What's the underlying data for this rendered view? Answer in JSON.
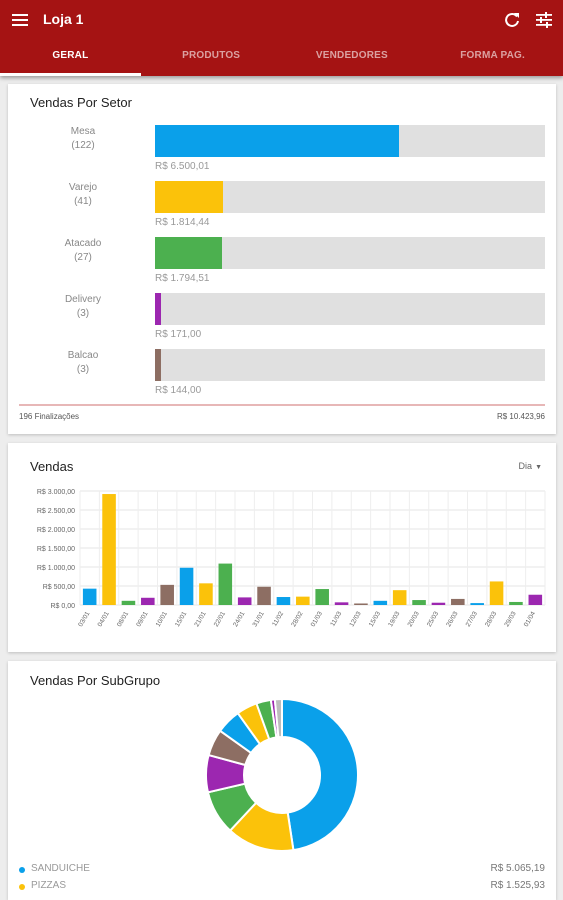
{
  "appbar": {
    "title": "Loja 1",
    "menu_icon": "menu-icon",
    "refresh_icon": "refresh-icon",
    "filter_icon": "tune-icon",
    "color": "#a51313"
  },
  "tabs": [
    {
      "label": "GERAL",
      "active": true
    },
    {
      "label": "PRODUTOS",
      "active": false
    },
    {
      "label": "VENDEDORES",
      "active": false
    },
    {
      "label": "FORMA PAG.",
      "active": false
    }
  ],
  "setor": {
    "title": "Vendas Por Setor",
    "items": [
      {
        "name": "Mesa",
        "count": "(122)",
        "value": "R$ 6.500,01",
        "amount": 6500.01,
        "color": "#0aa0ea"
      },
      {
        "name": "Varejo",
        "count": "(41)",
        "value": "R$ 1.814,44",
        "amount": 1814.44,
        "color": "#fbc20a"
      },
      {
        "name": "Atacado",
        "count": "(27)",
        "value": "R$ 1.794,51",
        "amount": 1794.51,
        "color": "#4cb04f"
      },
      {
        "name": "Delivery",
        "count": "(3)",
        "value": "R$ 171,00",
        "amount": 171.0,
        "color": "#9c27b0"
      },
      {
        "name": "Balcao",
        "count": "(3)",
        "value": "R$ 144,00",
        "amount": 144.0,
        "color": "#8d6e63"
      }
    ],
    "footer_left": "196 Finalizações",
    "footer_right": "R$ 10.423,96"
  },
  "vendas": {
    "title": "Vendas",
    "period": "Dia",
    "chart_data": {
      "type": "bar",
      "ylim": [
        0,
        3000
      ],
      "yticks": [
        "R$ 0,00",
        "R$ 500,00",
        "R$ 1.000,00",
        "R$ 1.500,00",
        "R$ 2.000,00",
        "R$ 2.500,00",
        "R$ 3.000,00"
      ],
      "categories": [
        "03/01",
        "04/01",
        "08/01",
        "09/01",
        "10/01",
        "15/01",
        "21/01",
        "22/01",
        "24/01",
        "31/01",
        "11/02",
        "28/02",
        "01/03",
        "11/03",
        "12/03",
        "15/03",
        "19/03",
        "20/03",
        "25/03",
        "26/03",
        "27/03",
        "28/03",
        "29/03",
        "01/04"
      ],
      "values": [
        430,
        2920,
        110,
        190,
        530,
        980,
        570,
        1090,
        200,
        480,
        210,
        220,
        420,
        70,
        40,
        110,
        390,
        130,
        60,
        160,
        50,
        620,
        80,
        270
      ],
      "colors": [
        "#0aa0ea",
        "#fbc20a",
        "#4cb04f",
        "#9c27b0",
        "#8d6e63",
        "#0aa0ea",
        "#fbc20a",
        "#4cb04f",
        "#9c27b0",
        "#8d6e63",
        "#0aa0ea",
        "#fbc20a",
        "#4cb04f",
        "#9c27b0",
        "#8d6e63",
        "#0aa0ea",
        "#fbc20a",
        "#4cb04f",
        "#9c27b0",
        "#8d6e63",
        "#0aa0ea",
        "#fbc20a",
        "#4cb04f",
        "#9c27b0"
      ],
      "grid": true
    }
  },
  "subgrupo": {
    "title": "Vendas Por SubGrupo",
    "chart_data": {
      "type": "pie",
      "series": [
        {
          "name": "SANDUICHE",
          "value": 5065.19,
          "color": "#0aa0ea"
        },
        {
          "name": "PIZZAS",
          "value": 1525.93,
          "color": "#fbc20a"
        },
        {
          "name": "",
          "value": 1000,
          "color": "#4cb04f"
        },
        {
          "name": "",
          "value": 840,
          "color": "#9c27b0"
        },
        {
          "name": "",
          "value": 600,
          "color": "#8d6e63"
        },
        {
          "name": "",
          "value": 560,
          "color": "#0aa0ea"
        },
        {
          "name": "",
          "value": 470,
          "color": "#fbc20a"
        },
        {
          "name": "",
          "value": 330,
          "color": "#4cb04f"
        },
        {
          "name": "",
          "value": 90,
          "color": "#9c27b0"
        },
        {
          "name": "",
          "value": 160,
          "color": "#bdbdbd"
        }
      ]
    },
    "legend": [
      {
        "name": "SANDUICHE",
        "value": "R$ 5.065,19",
        "color": "#0aa0ea"
      },
      {
        "name": "PIZZAS",
        "value": "R$ 1.525,93",
        "color": "#fbc20a"
      }
    ]
  }
}
